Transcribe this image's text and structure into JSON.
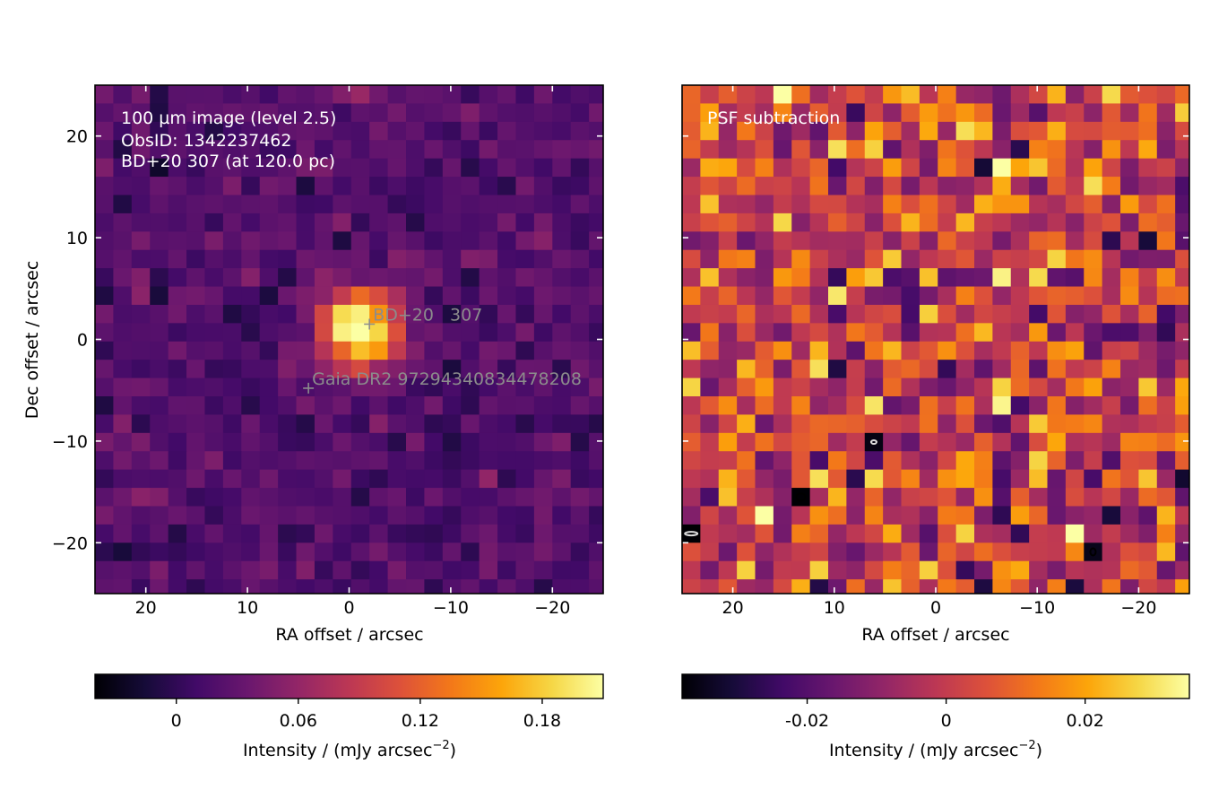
{
  "chart_data": [
    {
      "type": "heatmap",
      "panel": "left",
      "colormap": "inferno",
      "xlabel": "RA offset / arcsec",
      "ylabel": "Dec offset / arcsec",
      "xlim": [
        25,
        -25
      ],
      "ylim": [
        -25,
        25
      ],
      "xticks": [
        20,
        10,
        0,
        -10,
        -20
      ],
      "xtick_labels": [
        "20",
        "10",
        "0",
        "−10",
        "−20"
      ],
      "yticks": [
        20,
        10,
        0,
        -10,
        -20
      ],
      "ytick_labels": [
        "20",
        "10",
        "0",
        "−10",
        "−20"
      ],
      "pixel_size_arcsec": 1.8,
      "annotation_lines": [
        "100 µm image (level 2.5)",
        "ObsID: 1342237462",
        "BD+20 307 (at 120.0 pc)"
      ],
      "markers": [
        {
          "label": "BD+20   307",
          "x": -2.0,
          "y": 1.5
        },
        {
          "label": "Gaia DR2 97294340834478208",
          "x": 4.0,
          "y": -4.8
        }
      ],
      "colorbar": {
        "vmin": -0.04,
        "vmax": 0.21,
        "ticks": [
          0,
          0.06,
          0.12,
          0.18
        ],
        "tick_labels": [
          "0",
          "0.06",
          "0.12",
          "0.18"
        ],
        "label": "Intensity / (mJy arcsec",
        "label_exp": "−2",
        "label_end": ")"
      },
      "peak_value": 0.21,
      "background_value": 0.02
    },
    {
      "type": "heatmap",
      "panel": "right",
      "colormap": "inferno",
      "xlabel": "RA offset / arcsec",
      "xlim": [
        25,
        -25
      ],
      "ylim": [
        -25,
        25
      ],
      "xticks": [
        20,
        10,
        0,
        -10,
        -20
      ],
      "xtick_labels": [
        "20",
        "10",
        "0",
        "−10",
        "−20"
      ],
      "yticks": [
        20,
        10,
        0,
        -10,
        -20
      ],
      "pixel_size_arcsec": 1.8,
      "annotation_lines": [
        "PSF subtraction"
      ],
      "colorbar": {
        "vmin": -0.038,
        "vmax": 0.035,
        "ticks": [
          -0.02,
          0,
          0.02
        ],
        "tick_labels": [
          "-0.02",
          "0",
          "0.02"
        ],
        "label": "Intensity / (mJy arcsec",
        "label_exp": "−2",
        "label_end": ")"
      },
      "noise_std": 0.013
    }
  ]
}
